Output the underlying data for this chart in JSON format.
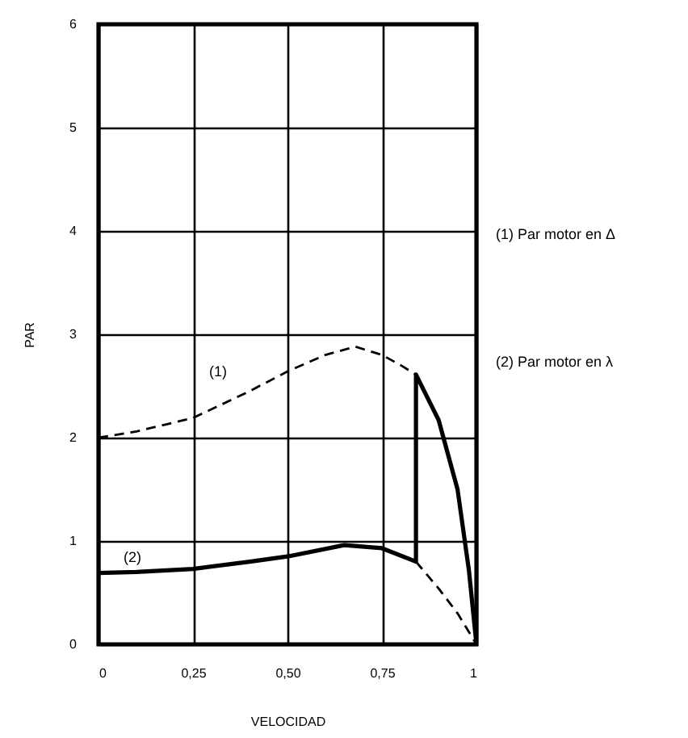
{
  "chart_data": {
    "type": "line",
    "xlabel": "VELOCIDAD",
    "ylabel": "PAR",
    "xlim": [
      0,
      1
    ],
    "ylim": [
      0,
      6
    ],
    "xticks": [
      0,
      {
        "value": 0.25,
        "label": "0,25"
      },
      {
        "value": 0.5,
        "label": "0,50"
      },
      {
        "value": 0.75,
        "label": "0,75"
      },
      1
    ],
    "yticks": [
      0,
      1,
      2,
      3,
      4,
      5,
      6
    ],
    "grid": true,
    "marker": "none",
    "series": [
      {
        "color": "#000000",
        "line_style": "dashed",
        "x": [
          0,
          0.1,
          0.25,
          0.4,
          0.5,
          0.6,
          0.68,
          0.75,
          0.8,
          0.84
        ],
        "values": [
          2,
          2.06,
          2.19,
          2.45,
          2.64,
          2.8,
          2.88,
          2.8,
          2.7,
          2.61
        ]
      },
      {
        "color": "#000000",
        "line_style": "dashed",
        "x": [
          0.84,
          0.9,
          0.95,
          1
        ],
        "values": [
          0.8,
          0.54,
          0.3,
          0
        ]
      },
      {
        "color": "#000000",
        "line_style": "solid",
        "x": [
          0,
          0.1,
          0.25,
          0.4,
          0.5,
          0.65,
          0.75,
          0.84,
          0.84,
          0.9,
          0.95,
          0.98,
          1
        ],
        "values": [
          0.69,
          0.7,
          0.73,
          0.8,
          0.85,
          0.96,
          0.93,
          0.8,
          2.61,
          2.17,
          1.5,
          0.72,
          0
        ]
      }
    ],
    "annotations": [
      "(1)",
      "(2)",
      "(1)  Par motor en Δ",
      "(2)  Par motor en λ"
    ]
  }
}
